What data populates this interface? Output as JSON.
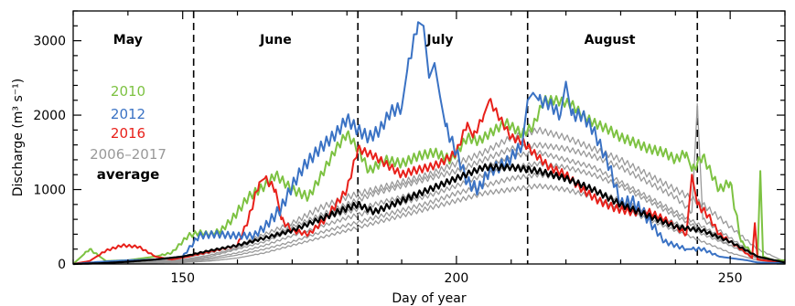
{
  "chart_data": {
    "type": "line",
    "title": "",
    "xlabel": "Day of year",
    "ylabel": "Discharge (m³ s⁻¹)",
    "xlim": [
      130,
      260
    ],
    "ylim": [
      0,
      3400
    ],
    "xticks": [
      150,
      200,
      250
    ],
    "yticks": [
      0,
      1000,
      2000,
      3000
    ],
    "month_boundaries": [
      152,
      182,
      213,
      244
    ],
    "month_labels": [
      {
        "text": "May",
        "x": 140
      },
      {
        "text": "June",
        "x": 167
      },
      {
        "text": "July",
        "x": 197
      },
      {
        "text": "August",
        "x": 228
      }
    ],
    "legend": {
      "placement": "left",
      "entries": [
        {
          "label": "2010",
          "color": "#7dc242"
        },
        {
          "label": "2012",
          "color": "#3a72c4"
        },
        {
          "label": "2016",
          "color": "#e8201a"
        },
        {
          "label": "2006–2017",
          "color": "#999999"
        },
        {
          "label": "average",
          "color": "#000000"
        }
      ]
    },
    "series": [
      {
        "name": "2010",
        "color": "#7dc242",
        "x": [
          130,
          133,
          136,
          140,
          145,
          148,
          151,
          153,
          155,
          157,
          159,
          162,
          165,
          167,
          170,
          173,
          175,
          178,
          180,
          182,
          184,
          187,
          190,
          193,
          196,
          199,
          202,
          204,
          206,
          209,
          212,
          214,
          216,
          218,
          221,
          223,
          225,
          228,
          230,
          232,
          235,
          238,
          240,
          242,
          243,
          245,
          248,
          250,
          252,
          254,
          255,
          255.5,
          256,
          258,
          260
        ],
        "y": [
          0,
          200,
          40,
          50,
          100,
          150,
          380,
          420,
          400,
          450,
          600,
          900,
          1050,
          1200,
          1000,
          900,
          1150,
          1550,
          1750,
          1550,
          1250,
          1400,
          1350,
          1450,
          1500,
          1400,
          1700,
          1650,
          1750,
          1900,
          1750,
          1850,
          2200,
          2200,
          2150,
          2000,
          1900,
          1800,
          1700,
          1650,
          1550,
          1500,
          1400,
          1500,
          1250,
          1450,
          1000,
          1100,
          300,
          150,
          100,
          1250,
          100,
          50,
          50
        ]
      },
      {
        "name": "2012",
        "color": "#3a72c4",
        "x": [
          130,
          135,
          140,
          145,
          150,
          153,
          156,
          160,
          163,
          165,
          168,
          170,
          172,
          175,
          178,
          180,
          182,
          184,
          186,
          188,
          190,
          191,
          193,
          194,
          195,
          196,
          197,
          198,
          200,
          202,
          204,
          206,
          209,
          212,
          213,
          214,
          215,
          217,
          219,
          220,
          221,
          223,
          225,
          228,
          230,
          232,
          234,
          236,
          238,
          240,
          242,
          243,
          245,
          248,
          250,
          253,
          255,
          260
        ],
        "y": [
          0,
          30,
          50,
          60,
          100,
          380,
          400,
          380,
          380,
          500,
          750,
          1050,
          1300,
          1550,
          1750,
          1950,
          1800,
          1700,
          1800,
          2050,
          2100,
          2600,
          3250,
          3200,
          2500,
          2700,
          2250,
          1850,
          1500,
          1100,
          1000,
          1250,
          1350,
          1600,
          2200,
          2300,
          2200,
          2150,
          2000,
          2450,
          2000,
          2000,
          1800,
          1300,
          800,
          850,
          700,
          500,
          300,
          250,
          200,
          200,
          200,
          100,
          80,
          50,
          20,
          10
        ]
      },
      {
        "name": "2016",
        "color": "#e8201a",
        "x": [
          130,
          133,
          136,
          139,
          142,
          145,
          148,
          151,
          154,
          157,
          160,
          162,
          164,
          165,
          167,
          168,
          170,
          173,
          176,
          178,
          180,
          182,
          185,
          188,
          190,
          192,
          195,
          197,
          200,
          202,
          203,
          205,
          206,
          208,
          210,
          212,
          214,
          217,
          220,
          223,
          226,
          229,
          232,
          235,
          238,
          240,
          242,
          243,
          244,
          246,
          248,
          250,
          252,
          254,
          254.5,
          255,
          258,
          260
        ],
        "y": [
          0,
          40,
          180,
          250,
          230,
          100,
          60,
          100,
          150,
          200,
          250,
          600,
          1100,
          1150,
          1000,
          600,
          450,
          400,
          600,
          800,
          1000,
          1550,
          1450,
          1300,
          1200,
          1250,
          1300,
          1350,
          1500,
          1900,
          1700,
          2000,
          2200,
          1950,
          1700,
          1650,
          1500,
          1300,
          1200,
          1000,
          850,
          750,
          700,
          700,
          600,
          500,
          400,
          1200,
          800,
          650,
          400,
          300,
          200,
          80,
          550,
          60,
          30,
          20
        ]
      },
      {
        "name": "2006–2017 (a)",
        "color": "#999999",
        "x": [
          130,
          140,
          150,
          155,
          160,
          165,
          170,
          175,
          180,
          185,
          190,
          195,
          200,
          205,
          210,
          215,
          220,
          225,
          230,
          235,
          240,
          245,
          250,
          255,
          260
        ],
        "y": [
          0,
          20,
          50,
          100,
          200,
          300,
          450,
          600,
          700,
          800,
          900,
          1000,
          1150,
          1300,
          1450,
          1500,
          1400,
          1300,
          1100,
          900,
          700,
          500,
          300,
          100,
          20
        ]
      },
      {
        "name": "2006–2017 (b)",
        "color": "#999999",
        "x": [
          130,
          140,
          150,
          155,
          160,
          165,
          170,
          175,
          180,
          185,
          190,
          195,
          200,
          205,
          210,
          215,
          220,
          225,
          230,
          235,
          240,
          245,
          250,
          255,
          260
        ],
        "y": [
          0,
          10,
          30,
          60,
          120,
          200,
          300,
          420,
          520,
          620,
          720,
          820,
          950,
          1050,
          1150,
          1200,
          1150,
          1000,
          850,
          700,
          550,
          400,
          250,
          80,
          10
        ]
      },
      {
        "name": "2006–2017 (c)",
        "color": "#999999",
        "x": [
          130,
          140,
          150,
          155,
          160,
          165,
          170,
          175,
          180,
          185,
          190,
          195,
          200,
          205,
          210,
          215,
          220,
          225,
          230,
          235,
          240,
          245,
          250,
          255,
          260
        ],
        "y": [
          0,
          30,
          80,
          150,
          250,
          400,
          550,
          750,
          900,
          1000,
          1100,
          1200,
          1350,
          1500,
          1700,
          1800,
          1700,
          1550,
          1400,
          1200,
          1000,
          800,
          500,
          200,
          30
        ]
      },
      {
        "name": "2006–2017 (d)",
        "color": "#999999",
        "x": [
          130,
          140,
          150,
          155,
          160,
          165,
          170,
          175,
          180,
          185,
          190,
          195,
          200,
          205,
          210,
          215,
          220,
          225,
          230,
          235,
          240,
          245,
          250,
          255,
          260
        ],
        "y": [
          0,
          10,
          20,
          40,
          80,
          150,
          250,
          350,
          450,
          550,
          650,
          750,
          850,
          950,
          1000,
          1050,
          1000,
          900,
          750,
          600,
          450,
          300,
          150,
          50,
          10
        ]
      },
      {
        "name": "2006–2017 (e)",
        "color": "#999999",
        "x": [
          130,
          140,
          150,
          155,
          160,
          165,
          170,
          175,
          180,
          185,
          190,
          195,
          200,
          205,
          210,
          215,
          220,
          225,
          230,
          235,
          240,
          243,
          244,
          245,
          250,
          255,
          260
        ],
        "y": [
          0,
          20,
          60,
          120,
          220,
          350,
          500,
          650,
          800,
          950,
          1050,
          1150,
          1250,
          1400,
          1550,
          1600,
          1550,
          1450,
          1300,
          1100,
          900,
          700,
          2150,
          600,
          350,
          100,
          20
        ]
      },
      {
        "name": "2006–2017 (f)",
        "color": "#999999",
        "x": [
          130,
          140,
          150,
          155,
          160,
          165,
          170,
          175,
          180,
          185,
          190,
          195,
          200,
          205,
          210,
          215,
          220,
          225,
          230,
          235,
          240,
          245,
          250,
          255,
          260
        ],
        "y": [
          0,
          15,
          40,
          80,
          150,
          250,
          380,
          500,
          620,
          720,
          820,
          920,
          1050,
          1200,
          1300,
          1350,
          1300,
          1200,
          1050,
          850,
          650,
          450,
          250,
          70,
          10
        ]
      },
      {
        "name": "average",
        "color": "#000000",
        "x": [
          130,
          135,
          140,
          145,
          150,
          155,
          160,
          165,
          170,
          175,
          180,
          182,
          185,
          190,
          195,
          200,
          205,
          210,
          215,
          220,
          225,
          230,
          235,
          240,
          245,
          250,
          255,
          260
        ],
        "y": [
          0,
          10,
          30,
          60,
          100,
          180,
          250,
          350,
          450,
          600,
          750,
          800,
          700,
          850,
          1000,
          1150,
          1300,
          1300,
          1250,
          1150,
          1000,
          800,
          650,
          500,
          450,
          300,
          100,
          20
        ]
      }
    ]
  }
}
